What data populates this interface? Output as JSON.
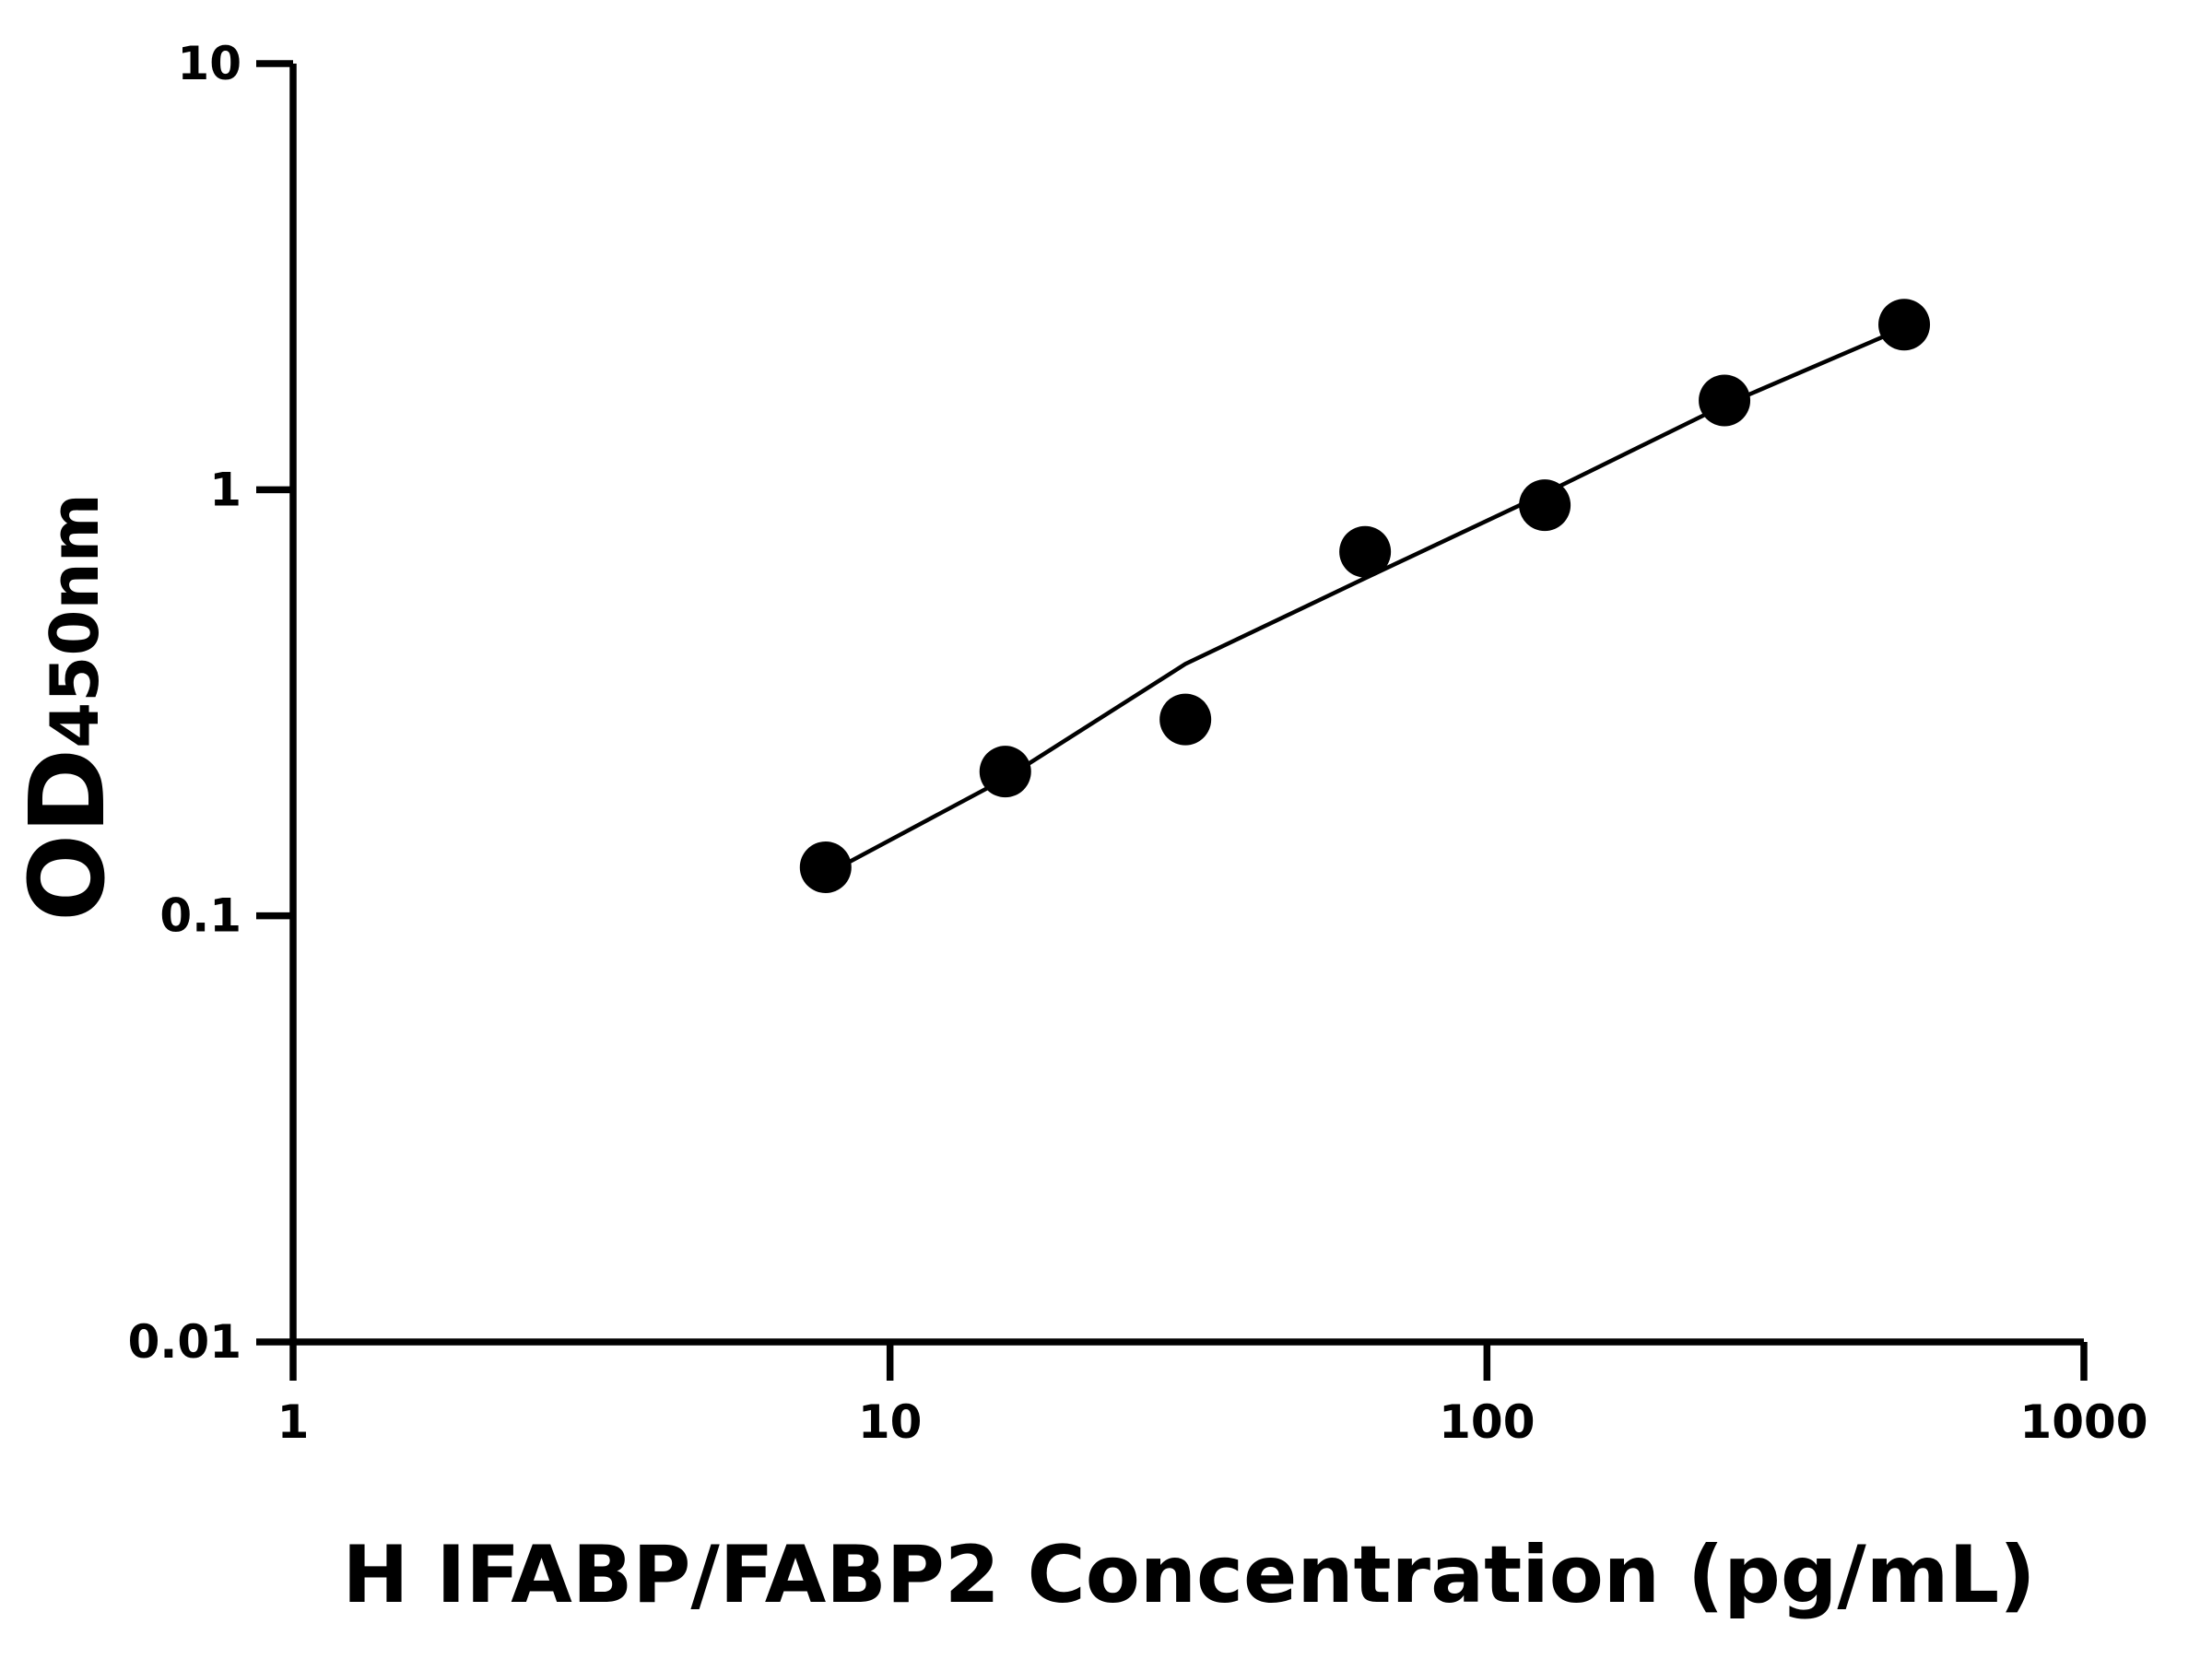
{
  "chart_data": {
    "type": "scatter",
    "xlabel": "H IFABP/FABP2 Concentration (pg/mL)",
    "ylabel": {
      "main": "OD",
      "sub": "450nm"
    },
    "x": [
      7.8,
      15.6,
      31.25,
      62.5,
      125,
      250,
      500
    ],
    "series": [
      {
        "color": "#000000",
        "values": [
          0.13,
          0.218,
          0.289,
          0.715,
          0.92,
          1.62,
          2.44
        ]
      }
    ],
    "fit": {
      "color": "#000000",
      "x": [
        7.8,
        15.6,
        31.25,
        62.5,
        125,
        250,
        500
      ],
      "values": [
        0.125,
        0.21,
        0.39,
        0.62,
        0.98,
        1.58,
        2.4
      ]
    },
    "xlim": [
      1,
      1000
    ],
    "xticks": [
      1,
      10,
      100,
      1000
    ],
    "ylim": [
      0.01,
      10
    ],
    "yticks": [
      0.01,
      0.1,
      1,
      10
    ],
    "log_x": true,
    "log_y": true,
    "grid": false
  }
}
